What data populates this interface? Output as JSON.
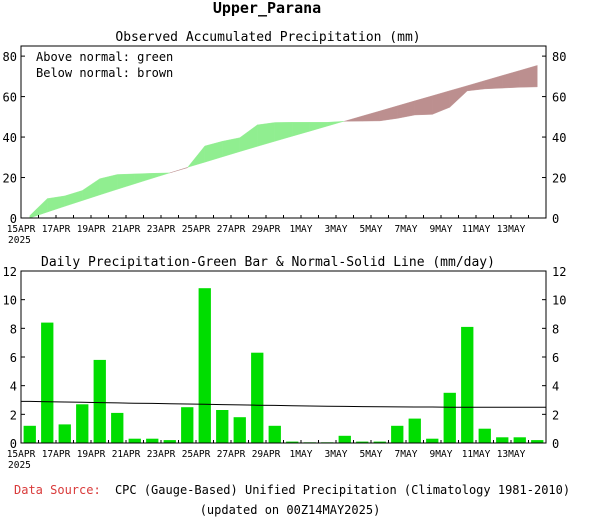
{
  "header": {
    "title": "Upper_Parana"
  },
  "chart_data": [
    {
      "type": "area",
      "title": "Observed Accumulated Precipitation (mm)",
      "annotations": [
        "Above normal: green",
        "Below normal: brown"
      ],
      "colors": {
        "above_normal": "#90ee90",
        "below_normal": "#bc8f8f"
      },
      "x_labels": [
        "15APR",
        "17APR",
        "19APR",
        "21APR",
        "23APR",
        "25APR",
        "27APR",
        "29APR",
        "1MAY",
        "3MAY",
        "5MAY",
        "7MAY",
        "9MAY",
        "11MAY",
        "13MAY"
      ],
      "x_year_label": "2025",
      "ylim": [
        0,
        85
      ],
      "y_ticks": [
        0,
        20,
        40,
        60,
        80
      ],
      "days": [
        "15APR",
        "16APR",
        "17APR",
        "18APR",
        "19APR",
        "20APR",
        "21APR",
        "22APR",
        "23APR",
        "24APR",
        "25APR",
        "26APR",
        "27APR",
        "28APR",
        "29APR",
        "30APR",
        "1MAY",
        "2MAY",
        "3MAY",
        "4MAY",
        "5MAY",
        "6MAY",
        "7MAY",
        "8MAY",
        "9MAY",
        "10MAY",
        "11MAY",
        "12MAY",
        "13MAY",
        "14MAY"
      ],
      "series": [
        {
          "name": "Observed",
          "values": [
            1.2,
            9.6,
            10.9,
            13.6,
            19.4,
            21.5,
            21.8,
            22.1,
            22.3,
            24.8,
            35.6,
            37.9,
            39.7,
            46.0,
            47.2,
            47.3,
            47.3,
            47.3,
            47.8,
            47.9,
            48.0,
            49.2,
            50.9,
            51.2,
            54.7,
            62.8,
            63.8,
            64.2,
            64.6,
            64.8
          ]
        },
        {
          "name": "Normal",
          "values": [
            0.0,
            2.9,
            5.8,
            8.6,
            11.4,
            14.2,
            16.9,
            19.6,
            22.3,
            25.0,
            27.6,
            30.2,
            32.8,
            35.4,
            37.9,
            40.4,
            42.9,
            45.4,
            47.9,
            50.4,
            52.9,
            55.4,
            57.9,
            60.4,
            62.9,
            65.4,
            67.9,
            70.4,
            72.9,
            75.4
          ]
        }
      ]
    },
    {
      "type": "bar",
      "title": "Daily Precipitation-Green Bar & Normal-Solid Line (mm/day)",
      "colors": {
        "bar": "#00dd00",
        "line": "#000000"
      },
      "x_labels": [
        "15APR",
        "17APR",
        "19APR",
        "21APR",
        "23APR",
        "25APR",
        "27APR",
        "29APR",
        "1MAY",
        "3MAY",
        "5MAY",
        "7MAY",
        "9MAY",
        "11MAY",
        "13MAY"
      ],
      "x_year_label": "2025",
      "ylim": [
        0,
        12
      ],
      "y_ticks": [
        0,
        2,
        4,
        6,
        8,
        10,
        12
      ],
      "days": [
        "15APR",
        "16APR",
        "17APR",
        "18APR",
        "19APR",
        "20APR",
        "21APR",
        "22APR",
        "23APR",
        "24APR",
        "25APR",
        "26APR",
        "27APR",
        "28APR",
        "29APR",
        "30APR",
        "1MAY",
        "2MAY",
        "3MAY",
        "4MAY",
        "5MAY",
        "6MAY",
        "7MAY",
        "8MAY",
        "9MAY",
        "10MAY",
        "11MAY",
        "12MAY",
        "13MAY",
        "14MAY"
      ],
      "series": [
        {
          "name": "Daily",
          "values": [
            1.2,
            8.4,
            1.3,
            2.7,
            5.8,
            2.1,
            0.3,
            0.3,
            0.2,
            2.5,
            10.8,
            2.3,
            1.8,
            6.3,
            1.2,
            0.1,
            0.05,
            0.05,
            0.5,
            0.1,
            0.1,
            1.2,
            1.7,
            0.3,
            3.5,
            8.1,
            1.0,
            0.4,
            0.4,
            0.2
          ]
        },
        {
          "name": "Normal",
          "values": [
            2.9,
            2.88,
            2.86,
            2.84,
            2.82,
            2.8,
            2.78,
            2.76,
            2.74,
            2.72,
            2.7,
            2.68,
            2.66,
            2.64,
            2.62,
            2.6,
            2.58,
            2.56,
            2.55,
            2.54,
            2.53,
            2.52,
            2.51,
            2.51,
            2.5,
            2.5,
            2.5,
            2.5,
            2.5,
            2.5
          ]
        }
      ]
    }
  ],
  "footer": {
    "source_label": "Data Source:",
    "source_text": "CPC (Gauge-Based) Unified Precipitation (Climatology 1981-2010)",
    "updated": "(updated on 00Z14MAY2025)",
    "source_label_color": "#d93a3a"
  }
}
